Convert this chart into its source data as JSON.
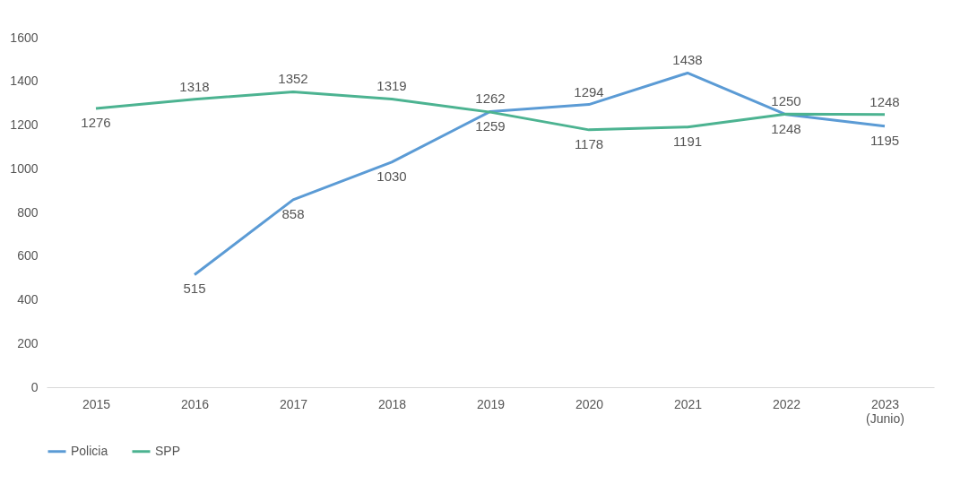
{
  "chart_data": {
    "type": "line",
    "categories": [
      "2015",
      "2016",
      "2017",
      "2018",
      "2019",
      "2020",
      "2021",
      "2022",
      "2023 (Junio)"
    ],
    "series": [
      {
        "name": "Policia",
        "color": "#5b9bd5",
        "values": [
          null,
          515,
          858,
          1030,
          1262,
          1294,
          1438,
          1248,
          1195
        ]
      },
      {
        "name": "SPP",
        "color": "#4cb391",
        "values": [
          1276,
          1318,
          1352,
          1319,
          1259,
          1178,
          1191,
          1250,
          1248
        ]
      }
    ],
    "ylim": [
      0,
      1600
    ],
    "yticks": [
      0,
      200,
      400,
      600,
      800,
      1000,
      1200,
      1400,
      1600
    ],
    "grid": false,
    "legend": "bottom",
    "data_labels": true,
    "marker": "none",
    "line_style": "solid"
  }
}
